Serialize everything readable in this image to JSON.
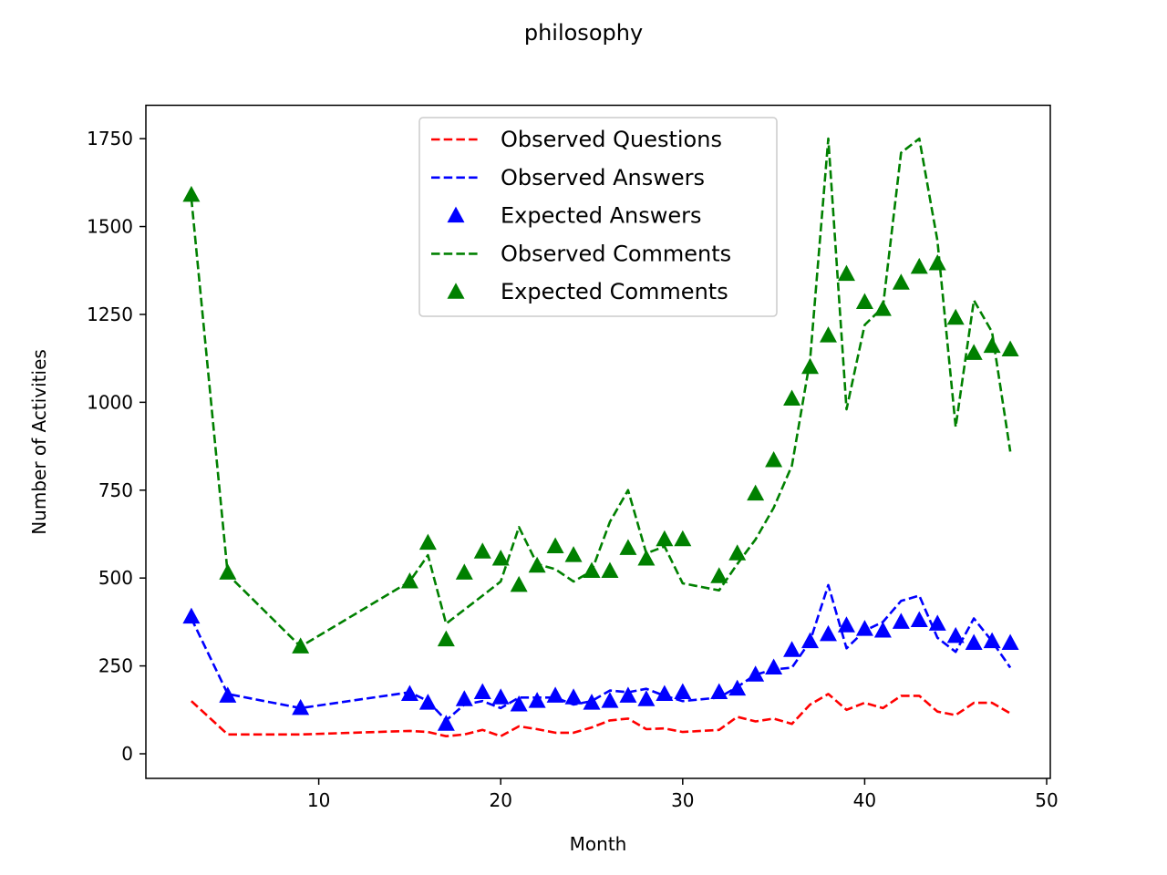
{
  "chart_data": {
    "type": "line",
    "title": "philosophy",
    "xlabel": "Month",
    "ylabel": "Number of Activities",
    "xlim": [
      0.5,
      50.2
    ],
    "ylim": [
      -70,
      1845
    ],
    "xticks": [
      10,
      20,
      30,
      40,
      50
    ],
    "yticks": [
      0,
      250,
      500,
      750,
      1000,
      1250,
      1500,
      1750
    ],
    "grid": false,
    "legend_position": "top-center",
    "x": [
      3,
      5,
      9,
      15,
      16,
      17,
      18,
      19,
      20,
      21,
      22,
      23,
      24,
      25,
      26,
      27,
      28,
      29,
      30,
      32,
      33,
      34,
      35,
      36,
      37,
      38,
      39,
      40,
      41,
      42,
      43,
      44,
      45,
      46,
      47,
      48
    ],
    "series": [
      {
        "name": "Observed Questions",
        "style": "dashed-line",
        "color": "#ff0000",
        "values": [
          150,
          55,
          55,
          65,
          62,
          50,
          55,
          68,
          50,
          78,
          70,
          60,
          60,
          75,
          95,
          100,
          70,
          72,
          62,
          68,
          105,
          92,
          100,
          85,
          140,
          170,
          125,
          145,
          130,
          165,
          165,
          120,
          110,
          145,
          145,
          115
        ]
      },
      {
        "name": "Observed Answers",
        "style": "dashed-line",
        "color": "#0000ff",
        "values": [
          385,
          170,
          130,
          175,
          150,
          95,
          140,
          150,
          130,
          160,
          160,
          160,
          140,
          150,
          180,
          175,
          185,
          165,
          150,
          160,
          190,
          225,
          240,
          245,
          320,
          480,
          300,
          350,
          375,
          435,
          450,
          330,
          290,
          385,
          320,
          245
        ]
      },
      {
        "name": "Expected Answers",
        "style": "triangle-markers",
        "color": "#0000ff",
        "values": [
          390,
          165,
          130,
          170,
          145,
          85,
          155,
          175,
          160,
          140,
          150,
          165,
          160,
          145,
          150,
          165,
          155,
          170,
          175,
          175,
          185,
          225,
          245,
          295,
          320,
          340,
          365,
          355,
          350,
          375,
          380,
          370,
          335,
          315,
          320,
          315
        ]
      },
      {
        "name": "Observed Comments",
        "style": "dashed-line",
        "color": "#008000",
        "values": [
          1580,
          510,
          305,
          490,
          565,
          370,
          410,
          450,
          490,
          645,
          540,
          525,
          490,
          520,
          660,
          750,
          570,
          590,
          485,
          465,
          540,
          610,
          700,
          820,
          1120,
          1750,
          980,
          1220,
          1270,
          1710,
          1750,
          1460,
          930,
          1290,
          1200,
          860
        ]
      },
      {
        "name": "Expected Comments",
        "style": "triangle-markers",
        "color": "#008000",
        "values": [
          1590,
          515,
          305,
          490,
          600,
          325,
          515,
          575,
          555,
          480,
          535,
          590,
          565,
          520,
          520,
          585,
          555,
          610,
          610,
          505,
          570,
          740,
          835,
          1010,
          1100,
          1190,
          1365,
          1285,
          1265,
          1340,
          1385,
          1395,
          1240,
          1140,
          1160,
          1150
        ]
      }
    ]
  }
}
